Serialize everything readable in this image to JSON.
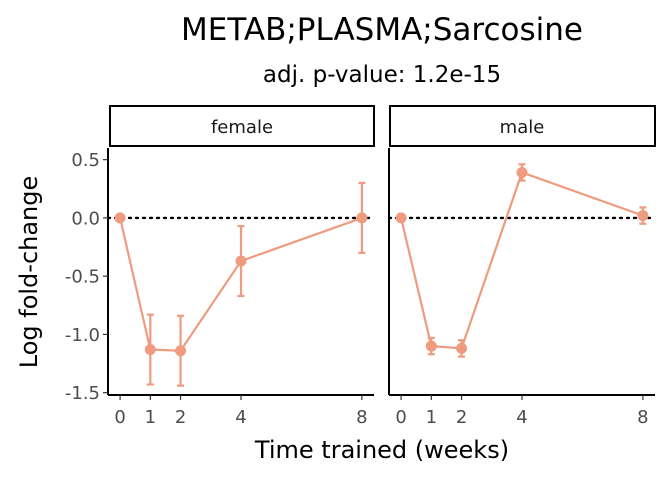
{
  "chart_data": {
    "type": "line",
    "title": "METAB;PLASMA;Sarcosine",
    "subtitle": "adj. p-value: 1.2e-15",
    "xlabel": "Time trained (weeks)",
    "ylabel": "Log fold-change",
    "x_ticks": [
      0,
      1,
      2,
      4,
      8
    ],
    "y_ticks": [
      0.5,
      0.0,
      -0.5,
      -1.0,
      -1.5
    ],
    "y_tick_labels": [
      "0.5",
      "0.0",
      "-0.5",
      "-1.0",
      "-1.5"
    ],
    "ylim": [
      -1.52,
      0.6
    ],
    "xlim": [
      -0.4,
      8.4
    ],
    "reference_line": 0,
    "color": "#EE9B7F",
    "grid": false,
    "panels": [
      {
        "name": "female",
        "x": [
          0,
          1,
          2,
          4,
          8
        ],
        "y": [
          0.0,
          -1.13,
          -1.14,
          -0.37,
          0.0
        ],
        "err_low": [
          0.0,
          -1.43,
          -1.44,
          -0.67,
          -0.3
        ],
        "err_high": [
          0.0,
          -0.83,
          -0.84,
          -0.07,
          0.3
        ]
      },
      {
        "name": "male",
        "x": [
          0,
          1,
          2,
          4,
          8
        ],
        "y": [
          0.0,
          -1.1,
          -1.12,
          0.39,
          0.02
        ],
        "err_low": [
          0.0,
          -1.17,
          -1.19,
          0.32,
          -0.05
        ],
        "err_high": [
          0.0,
          -1.03,
          -1.05,
          0.46,
          0.09
        ]
      }
    ]
  }
}
